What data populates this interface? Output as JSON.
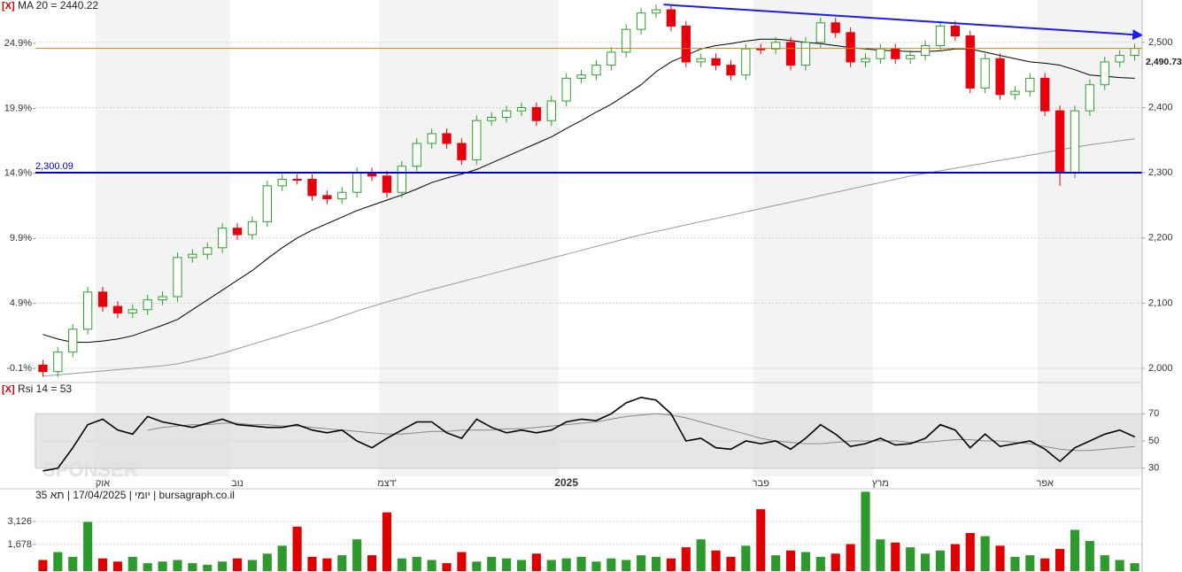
{
  "chart_data": [
    {
      "type": "candlestick",
      "title": "MA 20 = 2440.22",
      "marker": "[X]",
      "watermark": "SPONSER",
      "categories": [
        null,
        null,
        null,
        null,
        "אוק",
        null,
        null,
        null,
        null,
        null,
        null,
        null,
        null,
        "נוב",
        null,
        null,
        null,
        null,
        null,
        null,
        null,
        null,
        null,
        "דצמ'",
        null,
        null,
        null,
        null,
        null,
        null,
        null,
        null,
        null,
        null,
        null,
        "2025",
        null,
        null,
        null,
        null,
        null,
        null,
        null,
        null,
        null,
        null,
        null,
        null,
        "פבר",
        null,
        null,
        null,
        null,
        null,
        null,
        null,
        "מרץ",
        null,
        null,
        null,
        null,
        null,
        null,
        null,
        null,
        null,
        null,
        "אפר",
        null,
        null,
        null,
        null,
        null,
        null
      ],
      "open": [
        2005,
        1995,
        2025,
        2060,
        2117,
        2095,
        2085,
        2090,
        2105,
        2110,
        2170,
        2175,
        2185,
        2215,
        2205,
        2225,
        2280,
        2290,
        2290,
        2265,
        2260,
        2270,
        2300,
        2295,
        2270,
        2310,
        2345,
        2360,
        2345,
        2320,
        2380,
        2385,
        2395,
        2400,
        2380,
        2410,
        2445,
        2450,
        2465,
        2485,
        2520,
        2545,
        2550,
        2525,
        2470,
        2475,
        2465,
        2450,
        2490,
        2490,
        2500,
        2465,
        2500,
        2530,
        2515,
        2470,
        2475,
        2490,
        2475,
        2480,
        2495,
        2525,
        2510,
        2430,
        2475,
        2420,
        2425,
        2445,
        2395,
        2300,
        2395,
        2435,
        2470,
        2480
      ],
      "high": [
        2013,
        2033,
        2068,
        2125,
        2125,
        2103,
        2098,
        2113,
        2118,
        2178,
        2183,
        2193,
        2223,
        2223,
        2233,
        2288,
        2298,
        2298,
        2298,
        2273,
        2278,
        2308,
        2308,
        2303,
        2318,
        2353,
        2368,
        2368,
        2353,
        2388,
        2393,
        2403,
        2408,
        2408,
        2418,
        2453,
        2458,
        2473,
        2493,
        2528,
        2553,
        2558,
        2558,
        2533,
        2483,
        2483,
        2473,
        2498,
        2498,
        2508,
        2508,
        2508,
        2538,
        2538,
        2523,
        2483,
        2498,
        2498,
        2488,
        2503,
        2533,
        2533,
        2518,
        2483,
        2483,
        2433,
        2453,
        2453,
        2403,
        2403,
        2443,
        2478,
        2488,
        2498
      ],
      "low": [
        1987,
        1987,
        2017,
        2052,
        2087,
        2077,
        2077,
        2082,
        2097,
        2102,
        2162,
        2167,
        2177,
        2197,
        2197,
        2217,
        2272,
        2282,
        2257,
        2252,
        2252,
        2262,
        2287,
        2262,
        2262,
        2302,
        2337,
        2337,
        2312,
        2312,
        2372,
        2377,
        2387,
        2372,
        2372,
        2402,
        2437,
        2442,
        2457,
        2477,
        2512,
        2537,
        2517,
        2462,
        2462,
        2457,
        2442,
        2442,
        2482,
        2482,
        2457,
        2457,
        2492,
        2507,
        2462,
        2462,
        2467,
        2467,
        2467,
        2472,
        2487,
        2502,
        2422,
        2422,
        2412,
        2412,
        2417,
        2387,
        2280,
        2292,
        2387,
        2427,
        2462,
        2472
      ],
      "close": [
        1995,
        2025,
        2060,
        2117,
        2095,
        2085,
        2090,
        2105,
        2110,
        2170,
        2175,
        2185,
        2215,
        2205,
        2225,
        2280,
        2290,
        2290,
        2265,
        2260,
        2270,
        2300,
        2295,
        2270,
        2310,
        2345,
        2360,
        2345,
        2320,
        2380,
        2385,
        2395,
        2400,
        2380,
        2410,
        2445,
        2450,
        2465,
        2485,
        2520,
        2545,
        2550,
        2525,
        2470,
        2475,
        2465,
        2450,
        2490,
        2490,
        2500,
        2465,
        2500,
        2530,
        2515,
        2470,
        2475,
        2490,
        2475,
        2480,
        2495,
        2525,
        2510,
        2430,
        2475,
        2420,
        2425,
        2445,
        2395,
        2300,
        2395,
        2435,
        2470,
        2480,
        2490.73
      ],
      "up_color": "#2ca02c",
      "down_color": "#e8000b",
      "lines": [
        {
          "color": "#000000",
          "values": [
            2052,
            2045,
            2040,
            2040,
            2042,
            2045,
            2050,
            2058,
            2066,
            2075,
            2090,
            2105,
            2120,
            2135,
            2150,
            2168,
            2185,
            2200,
            2212,
            2222,
            2232,
            2242,
            2250,
            2258,
            2266,
            2275,
            2285,
            2292,
            2298,
            2305,
            2315,
            2325,
            2335,
            2345,
            2355,
            2368,
            2380,
            2393,
            2405,
            2420,
            2435,
            2455,
            2470,
            2480,
            2490,
            2495,
            2498,
            2502,
            2505,
            2505,
            2503,
            2500,
            2498,
            2495,
            2492,
            2490,
            2488,
            2487,
            2486,
            2486,
            2487,
            2490,
            2490,
            2485,
            2480,
            2475,
            2470,
            2468,
            2465,
            2458,
            2450,
            2448,
            2446,
            2445
          ]
        },
        {
          "color": "#999999",
          "values": [
            1988,
            1990,
            1992,
            1994,
            1996,
            1998,
            2000,
            2002,
            2004,
            2007,
            2012,
            2017,
            2023,
            2030,
            2037,
            2044,
            2051,
            2058,
            2065,
            2072,
            2080,
            2088,
            2095,
            2102,
            2108,
            2115,
            2121,
            2127,
            2133,
            2139,
            2145,
            2151,
            2157,
            2163,
            2169,
            2175,
            2181,
            2187,
            2193,
            2199,
            2205,
            2210,
            2215,
            2220,
            2225,
            2230,
            2235,
            2240,
            2245,
            2250,
            2255,
            2260,
            2265,
            2270,
            2275,
            2280,
            2285,
            2290,
            2295,
            2299,
            2303,
            2307,
            2311,
            2315,
            2319,
            2323,
            2327,
            2331,
            2335,
            2339,
            2343,
            2346,
            2349,
            2352
          ]
        }
      ],
      "ylim": [
        1981,
        2565
      ],
      "yticks": [
        {
          "value": 2000,
          "label": "2,000"
        },
        {
          "value": 2100,
          "label": "2,100"
        },
        {
          "value": 2200,
          "label": "2,200"
        },
        {
          "value": 2300,
          "label": "2,300"
        },
        {
          "value": 2400,
          "label": "2,400"
        },
        {
          "value": 2500,
          "label": "2,500"
        }
      ],
      "ytick_side": "right",
      "y2lim": [
        -1.05,
        28.24
      ],
      "y2ticks": [
        {
          "value": -0.1,
          "label": "-0.1%"
        },
        {
          "value": 4.9,
          "label": "4.9%"
        },
        {
          "value": 9.9,
          "label": "9.9%"
        },
        {
          "value": 14.9,
          "label": "14.9%"
        },
        {
          "value": 19.9,
          "label": "19.9%"
        },
        {
          "value": 24.9,
          "label": "24.9%"
        }
      ],
      "grid": true,
      "hlines": [
        {
          "value": 2300.09,
          "label": "2,300.09",
          "color": "#0000cc",
          "label_side": "left"
        },
        {
          "value": 2490.73,
          "label": "2,490.73",
          "color": "#c8860a",
          "label_side": "right"
        }
      ],
      "trendline": {
        "x": [
          41.5,
          73.5
        ],
        "y": [
          2558,
          2511
        ],
        "color": "#1a1aff"
      }
    },
    {
      "type": "line",
      "title": "Rsi 14 = 53",
      "marker": "[X]",
      "series": [
        {
          "color": "#000000",
          "values": [
            28,
            30,
            45,
            62,
            66,
            58,
            55,
            68,
            64,
            62,
            60,
            63,
            66,
            62,
            61,
            60,
            60,
            62,
            58,
            56,
            58,
            50,
            45,
            52,
            58,
            64,
            64,
            56,
            52,
            66,
            60,
            56,
            58,
            56,
            58,
            64,
            66,
            65,
            70,
            78,
            82,
            80,
            70,
            50,
            52,
            45,
            44,
            50,
            48,
            50,
            44,
            52,
            62,
            55,
            46,
            48,
            52,
            47,
            48,
            52,
            62,
            58,
            45,
            55,
            46,
            48,
            50,
            44,
            35,
            45,
            50,
            55,
            58,
            53
          ]
        },
        {
          "color": "#888888",
          "values": [
            null,
            null,
            null,
            null,
            null,
            null,
            null,
            58,
            60,
            61,
            62,
            62,
            63,
            63,
            62,
            62,
            61,
            61,
            60,
            59,
            58,
            57,
            56,
            55,
            55,
            56,
            57,
            57,
            58,
            58,
            58,
            59,
            59,
            60,
            61,
            62,
            63,
            64,
            66,
            68,
            69,
            70,
            69,
            67,
            64,
            61,
            58,
            55,
            52,
            50,
            49,
            48,
            48,
            49,
            50,
            50,
            50,
            50,
            49,
            49,
            50,
            51,
            51,
            50,
            50,
            49,
            48,
            46,
            44,
            43,
            43,
            44,
            45,
            46
          ]
        }
      ],
      "ylim": [
        24,
        91
      ],
      "yticks": [
        30,
        50,
        70
      ],
      "band": [
        30,
        70
      ],
      "ytick_side": "right"
    },
    {
      "type": "bar",
      "title": "יומי | 17/04/2025 | תא 35 | bursagraph.co.il",
      "values": [
        700,
        1200,
        900,
        3100,
        800,
        600,
        900,
        500,
        600,
        700,
        500,
        400,
        600,
        800,
        700,
        1100,
        1600,
        2800,
        900,
        800,
        1000,
        2000,
        1000,
        3700,
        800,
        900,
        700,
        500,
        1200,
        600,
        900,
        800,
        700,
        1100,
        700,
        800,
        900,
        600,
        800,
        700,
        1000,
        900,
        800,
        1500,
        2000,
        1300,
        900,
        1600,
        3900,
        1000,
        1300,
        1200,
        900,
        1100,
        1700,
        5000,
        2000,
        1800,
        1500,
        1100,
        1300,
        1700,
        2400,
        2200,
        1600,
        900,
        1000,
        800,
        1400,
        2600,
        1900,
        1000,
        700,
        500
      ],
      "up_color": "#2e9a2e",
      "down_color": "#e00000",
      "ylim": [
        0,
        5300
      ],
      "yticks": [
        {
          "value": 1678,
          "label": "1,678"
        },
        {
          "value": 3126,
          "label": "3,126"
        }
      ],
      "ytick_side": "left"
    }
  ]
}
